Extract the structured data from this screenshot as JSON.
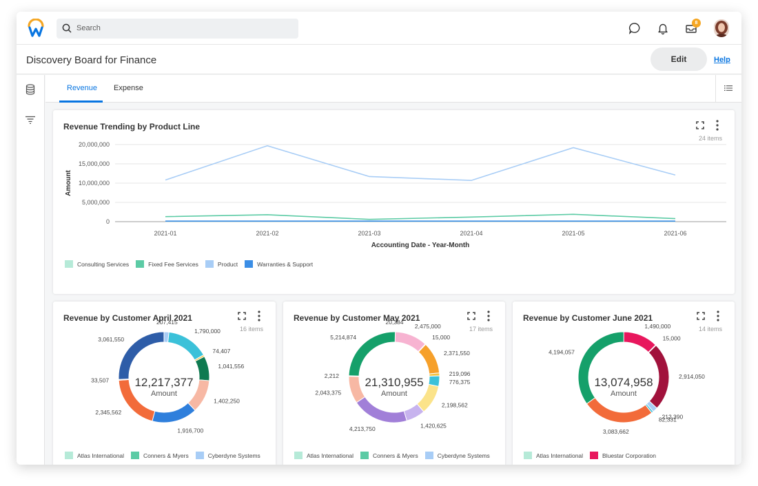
{
  "search": {
    "placeholder": "Search"
  },
  "header": {
    "title": "Discovery Board for Finance",
    "edit_label": "Edit",
    "help_label": "Help"
  },
  "notifications": {
    "badge": "8"
  },
  "tabs": [
    {
      "label": "Revenue",
      "active": true
    },
    {
      "label": "Expense",
      "active": false
    }
  ],
  "colors": {
    "accent": "#0875e1",
    "badge": "#f5a623"
  },
  "trend_card": {
    "title": "Revenue Trending by Product Line",
    "items": "24 items"
  },
  "april_card": {
    "title": "Revenue by Customer April 2021",
    "items": "16 items",
    "total": "12,217,377",
    "total_label": "Amount"
  },
  "may_card": {
    "title": "Revenue by Customer May 2021",
    "items": "17 items",
    "total": "21,310,955",
    "total_label": "Amount"
  },
  "june_card": {
    "title": "Revenue by Customer June 2021",
    "items": "14 items",
    "total": "13,074,958",
    "total_label": "Amount"
  },
  "chart_data": [
    {
      "type": "line",
      "title": "Revenue Trending by Product Line",
      "xlabel": "Accounting Date - Year-Month",
      "ylabel": "Amount",
      "x": [
        "2021-01",
        "2021-02",
        "2021-03",
        "2021-04",
        "2021-05",
        "2021-06"
      ],
      "yticks": [
        "0",
        "5,000,000",
        "10,000,000",
        "15,000,000",
        "20,000,000"
      ],
      "ylim": [
        0,
        20000000
      ],
      "grid": true,
      "legend_position": "bottom-left",
      "series": [
        {
          "name": "Consulting Services",
          "color": "#b6ead8",
          "values": [
            100000,
            100000,
            100000,
            100000,
            100000,
            100000
          ]
        },
        {
          "name": "Fixed Fee Services",
          "color": "#5ccba5",
          "values": [
            1300000,
            1800000,
            600000,
            1200000,
            1900000,
            800000
          ]
        },
        {
          "name": "Product",
          "color": "#a8cdf6",
          "values": [
            10800000,
            19700000,
            11700000,
            10700000,
            19200000,
            12100000
          ]
        },
        {
          "name": "Warranties & Support",
          "color": "#3b8ee6",
          "values": [
            150000,
            150000,
            150000,
            150000,
            150000,
            150000
          ]
        }
      ]
    },
    {
      "type": "pie",
      "title": "Revenue by Customer April 2021",
      "total": "12,217,377",
      "legend_position": "bottom",
      "legend": [
        {
          "name": "Atlas International",
          "color": "#b6ead8"
        },
        {
          "name": "Conners & Myers",
          "color": "#5ccba5"
        },
        {
          "name": "Cyberdyne Systems",
          "color": "#a8cdf6"
        }
      ],
      "slices": [
        {
          "value": 207415,
          "label": "207,415",
          "color": "#a8cdf6"
        },
        {
          "value": 1790000,
          "label": "1,790,000",
          "color": "#3bc1d9"
        },
        {
          "value": 74407,
          "label": "74,407",
          "color": "#f5c242"
        },
        {
          "value": 1041556,
          "label": "1,041,556",
          "color": "#0f7a50"
        },
        {
          "value": 1402250,
          "label": "1,402,250",
          "color": "#f7b8a4"
        },
        {
          "value": 1916700,
          "label": "1,916,700",
          "color": "#2f7fdc"
        },
        {
          "value": 2345562,
          "label": "2,345,562",
          "color": "#f26b3a"
        },
        {
          "value": 33507,
          "label": "33,507",
          "color": "#f5c242"
        },
        {
          "value": 3061550,
          "label": "3,061,550",
          "color": "#2e5da8"
        }
      ]
    },
    {
      "type": "pie",
      "title": "Revenue by Customer May 2021",
      "total": "21,310,955",
      "legend_position": "bottom",
      "legend": [
        {
          "name": "Atlas International",
          "color": "#b6ead8"
        },
        {
          "name": "Conners & Myers",
          "color": "#5ccba5"
        },
        {
          "name": "Cyberdyne Systems",
          "color": "#a8cdf6"
        }
      ],
      "slices": [
        {
          "value": 20384,
          "label": "20,384",
          "color": "#a8cdf6"
        },
        {
          "value": 2475000,
          "label": "2,475,000",
          "color": "#f7b3d1"
        },
        {
          "value": 15000,
          "label": "15,000",
          "color": "#c9a8e8"
        },
        {
          "value": 2371550,
          "label": "2,371,550",
          "color": "#f6a02a"
        },
        {
          "value": 219096,
          "label": "219,096",
          "color": "#f5c242"
        },
        {
          "value": 776375,
          "label": "776,375",
          "color": "#3bc1d9"
        },
        {
          "value": 2198562,
          "label": "2,198,562",
          "color": "#fbe38a"
        },
        {
          "value": 1420625,
          "label": "1,420,625",
          "color": "#c7b3ee"
        },
        {
          "value": 4213750,
          "label": "4,213,750",
          "color": "#a17fd8"
        },
        {
          "value": 2043375,
          "label": "2,043,375",
          "color": "#f7b8a4"
        },
        {
          "value": 2212,
          "label": "2,212",
          "color": "#f26b3a"
        },
        {
          "value": 5214874,
          "label": "5,214,874",
          "color": "#15a06a"
        }
      ]
    },
    {
      "type": "pie",
      "title": "Revenue by Customer June 2021",
      "total": "13,074,958",
      "legend_position": "bottom",
      "legend": [
        {
          "name": "Atlas International",
          "color": "#b6ead8"
        },
        {
          "name": "Bluestar Corporation",
          "color": "#e8175d"
        }
      ],
      "slices": [
        {
          "value": 1490000,
          "label": "1,490,000",
          "color": "#e8175d"
        },
        {
          "value": 15000,
          "label": "15,000",
          "color": "#f7b3d1"
        },
        {
          "value": 2914050,
          "label": "2,914,050",
          "color": "#a1123c"
        },
        {
          "value": 212390,
          "label": "212,390",
          "color": "#a8cdf6"
        },
        {
          "value": 82331,
          "label": "82,331",
          "color": "#3bc1d9"
        },
        {
          "value": 3083662,
          "label": "3,083,662",
          "color": "#f26b3a"
        },
        {
          "value": 4194057,
          "label": "4,194,057",
          "color": "#15a06a"
        }
      ]
    }
  ]
}
